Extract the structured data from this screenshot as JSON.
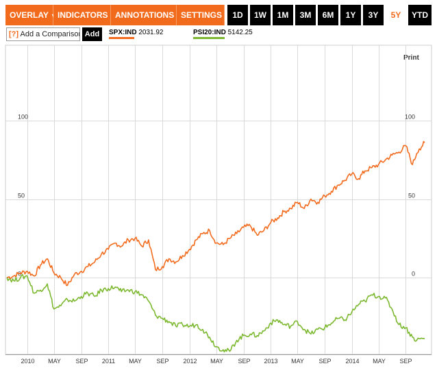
{
  "toolbar": {
    "menus": [
      {
        "label": "OVERLAY",
        "caret": "▼"
      },
      {
        "label": "INDICATORS",
        "caret": "▼"
      },
      {
        "label": "ANNOTATIONS",
        "caret": "▼"
      },
      {
        "label": "SETTINGS",
        "caret": "▼"
      }
    ],
    "ranges": [
      "1D",
      "1W",
      "1M",
      "3M",
      "6M",
      "1Y",
      "3Y",
      "5Y",
      "YTD"
    ],
    "active_range": "5Y"
  },
  "comparison": {
    "help_label": "[?]",
    "input_text": "Add a Comparison",
    "add_label": "Add"
  },
  "legend": [
    {
      "symbol": "SPX:IND",
      "value": "2031.92",
      "color": "#f26b1d"
    },
    {
      "symbol": "PSI20:IND",
      "value": "5142.25",
      "color": "#7cb82f"
    }
  ],
  "print_label": "Print",
  "colors": {
    "accent": "#f26b1d",
    "spx": "#f26b1d",
    "psi20": "#7cb82f",
    "grid": "#d9d9d9"
  },
  "chart_data": {
    "type": "line",
    "title": "",
    "xlabel": "",
    "ylabel": "",
    "ylim": [
      -50,
      125
    ],
    "y_ticks": [
      0,
      50,
      100
    ],
    "y_tick_labels": [
      "0",
      "50",
      "100"
    ],
    "grid": true,
    "x_ticks": [
      {
        "date": "2010-01-01",
        "label": "2010"
      },
      {
        "date": "2010-05-01",
        "label": "MAY"
      },
      {
        "date": "2010-09-01",
        "label": "SEP"
      },
      {
        "date": "2011-01-01",
        "label": "2011"
      },
      {
        "date": "2011-05-01",
        "label": "MAY"
      },
      {
        "date": "2011-09-01",
        "label": "SEP"
      },
      {
        "date": "2012-01-01",
        "label": "2012"
      },
      {
        "date": "2012-05-01",
        "label": "MAY"
      },
      {
        "date": "2012-09-01",
        "label": "SEP"
      },
      {
        "date": "2013-01-01",
        "label": "2013"
      },
      {
        "date": "2013-05-01",
        "label": "MAY"
      },
      {
        "date": "2013-09-01",
        "label": "SEP"
      },
      {
        "date": "2014-01-01",
        "label": "2014"
      },
      {
        "date": "2014-05-01",
        "label": "MAY"
      },
      {
        "date": "2014-09-01",
        "label": "SEP"
      }
    ],
    "x_range": [
      "2009-10-01",
      "2014-11-25"
    ],
    "series": [
      {
        "name": "SPX:IND",
        "color": "#f26b1d",
        "points": [
          [
            "2009-10-01",
            0
          ],
          [
            "2009-11-01",
            1
          ],
          [
            "2009-12-01",
            3
          ],
          [
            "2010-01-01",
            4
          ],
          [
            "2010-02-01",
            1
          ],
          [
            "2010-03-01",
            8
          ],
          [
            "2010-04-01",
            12
          ],
          [
            "2010-05-01",
            3
          ],
          [
            "2010-06-01",
            0
          ],
          [
            "2010-07-01",
            -5
          ],
          [
            "2010-08-01",
            2
          ],
          [
            "2010-09-01",
            4
          ],
          [
            "2010-10-01",
            7
          ],
          [
            "2010-11-01",
            10
          ],
          [
            "2010-12-01",
            15
          ],
          [
            "2011-01-01",
            18
          ],
          [
            "2011-02-01",
            22
          ],
          [
            "2011-03-01",
            20
          ],
          [
            "2011-04-01",
            24
          ],
          [
            "2011-05-01",
            25
          ],
          [
            "2011-06-01",
            20
          ],
          [
            "2011-07-01",
            24
          ],
          [
            "2011-08-01",
            5
          ],
          [
            "2011-09-01",
            7
          ],
          [
            "2011-10-01",
            12
          ],
          [
            "2011-11-01",
            10
          ],
          [
            "2011-12-01",
            14
          ],
          [
            "2012-01-01",
            18
          ],
          [
            "2012-02-01",
            24
          ],
          [
            "2012-03-01",
            28
          ],
          [
            "2012-04-01",
            30
          ],
          [
            "2012-05-01",
            22
          ],
          [
            "2012-06-01",
            21
          ],
          [
            "2012-07-01",
            25
          ],
          [
            "2012-08-01",
            28
          ],
          [
            "2012-09-01",
            32
          ],
          [
            "2012-10-01",
            33
          ],
          [
            "2012-11-01",
            27
          ],
          [
            "2012-12-01",
            30
          ],
          [
            "2013-01-01",
            35
          ],
          [
            "2013-02-01",
            38
          ],
          [
            "2013-03-01",
            42
          ],
          [
            "2013-04-01",
            44
          ],
          [
            "2013-05-01",
            48
          ],
          [
            "2013-06-01",
            44
          ],
          [
            "2013-07-01",
            50
          ],
          [
            "2013-08-01",
            48
          ],
          [
            "2013-09-01",
            52
          ],
          [
            "2013-10-01",
            55
          ],
          [
            "2013-11-01",
            59
          ],
          [
            "2013-12-01",
            62
          ],
          [
            "2014-01-01",
            66
          ],
          [
            "2014-02-01",
            63
          ],
          [
            "2014-03-01",
            68
          ],
          [
            "2014-04-01",
            70
          ],
          [
            "2014-05-01",
            72
          ],
          [
            "2014-06-01",
            75
          ],
          [
            "2014-07-01",
            78
          ],
          [
            "2014-08-01",
            80
          ],
          [
            "2014-09-01",
            84
          ],
          [
            "2014-10-01",
            72
          ],
          [
            "2014-10-20",
            79
          ],
          [
            "2014-11-01",
            82
          ],
          [
            "2014-11-25",
            86
          ]
        ]
      },
      {
        "name": "PSI20:IND",
        "color": "#7cb82f",
        "points": [
          [
            "2009-10-01",
            0
          ],
          [
            "2009-11-01",
            -2
          ],
          [
            "2009-12-01",
            0
          ],
          [
            "2010-01-01",
            1
          ],
          [
            "2010-02-01",
            -10
          ],
          [
            "2010-03-01",
            -8
          ],
          [
            "2010-04-01",
            -4
          ],
          [
            "2010-05-01",
            -20
          ],
          [
            "2010-06-01",
            -18
          ],
          [
            "2010-07-01",
            -14
          ],
          [
            "2010-08-01",
            -15
          ],
          [
            "2010-09-01",
            -12
          ],
          [
            "2010-10-01",
            -10
          ],
          [
            "2010-11-01",
            -12
          ],
          [
            "2010-12-01",
            -8
          ],
          [
            "2011-01-01",
            -7
          ],
          [
            "2011-02-01",
            -6
          ],
          [
            "2011-03-01",
            -9
          ],
          [
            "2011-04-01",
            -8
          ],
          [
            "2011-05-01",
            -9
          ],
          [
            "2011-06-01",
            -11
          ],
          [
            "2011-07-01",
            -15
          ],
          [
            "2011-08-01",
            -24
          ],
          [
            "2011-09-01",
            -26
          ],
          [
            "2011-10-01",
            -28
          ],
          [
            "2011-11-01",
            -31
          ],
          [
            "2011-12-01",
            -30
          ],
          [
            "2012-01-01",
            -31
          ],
          [
            "2012-02-01",
            -30
          ],
          [
            "2012-03-01",
            -33
          ],
          [
            "2012-04-01",
            -38
          ],
          [
            "2012-05-01",
            -44
          ],
          [
            "2012-06-01",
            -46
          ],
          [
            "2012-07-01",
            -47
          ],
          [
            "2012-08-01",
            -40
          ],
          [
            "2012-09-01",
            -37
          ],
          [
            "2012-10-01",
            -36
          ],
          [
            "2012-11-01",
            -37
          ],
          [
            "2012-12-01",
            -34
          ],
          [
            "2013-01-01",
            -29
          ],
          [
            "2013-02-01",
            -27
          ],
          [
            "2013-03-01",
            -30
          ],
          [
            "2013-04-01",
            -31
          ],
          [
            "2013-05-01",
            -28
          ],
          [
            "2013-06-01",
            -33
          ],
          [
            "2013-07-01",
            -36
          ],
          [
            "2013-08-01",
            -33
          ],
          [
            "2013-09-01",
            -32
          ],
          [
            "2013-10-01",
            -29
          ],
          [
            "2013-11-01",
            -26
          ],
          [
            "2013-12-01",
            -27
          ],
          [
            "2014-01-01",
            -22
          ],
          [
            "2014-02-01",
            -17
          ],
          [
            "2014-03-01",
            -15
          ],
          [
            "2014-04-01",
            -11
          ],
          [
            "2014-05-01",
            -12
          ],
          [
            "2014-06-01",
            -13
          ],
          [
            "2014-07-01",
            -20
          ],
          [
            "2014-08-01",
            -30
          ],
          [
            "2014-09-01",
            -32
          ],
          [
            "2014-10-01",
            -38
          ],
          [
            "2014-10-20",
            -40
          ],
          [
            "2014-11-01",
            -39
          ],
          [
            "2014-11-25",
            -39
          ]
        ]
      }
    ]
  }
}
